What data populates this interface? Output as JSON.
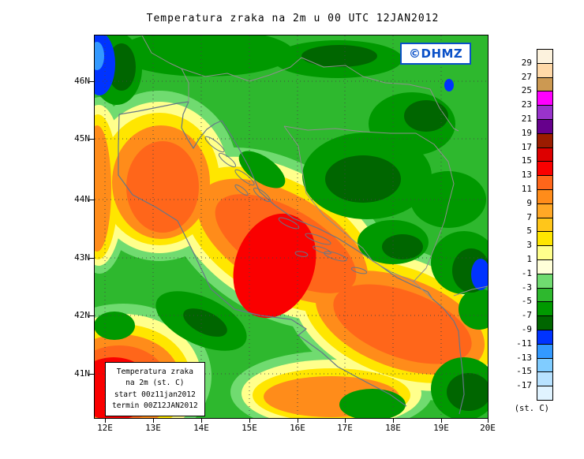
{
  "title": "Temperatura zraka na 2m u 00 UTC 12JAN2012",
  "badge": {
    "text": "©DHMZ"
  },
  "legend": {
    "lines": [
      "Temperatura zraka",
      "na 2m (st. C)",
      "start 00z11jan2012",
      "termin 00Z12JAN2012"
    ]
  },
  "axes": {
    "lat_labels": [
      "46N",
      "45N",
      "44N",
      "43N",
      "42N",
      "41N"
    ],
    "lon_labels": [
      "12E",
      "13E",
      "14E",
      "15E",
      "16E",
      "17E",
      "18E",
      "19E",
      "20E"
    ]
  },
  "colorbar": {
    "unit": "(st. C)",
    "labels": [
      "29",
      "27",
      "25",
      "23",
      "21",
      "19",
      "17",
      "15",
      "13",
      "11",
      "9",
      "7",
      "5",
      "3",
      "1",
      "-1",
      "-3",
      "-5",
      "-7",
      "-9",
      "-11",
      "-13",
      "-15",
      "-17"
    ],
    "colors": [
      "#fcf2dd",
      "#ffd9a8",
      "#cc9952",
      "#ff00ff",
      "#9933cc",
      "#66008c",
      "#9b1c00",
      "#dd0000",
      "#fa0000",
      "#ff661a",
      "#ff8c1a",
      "#ffa826",
      "#ffc61a",
      "#ffe600",
      "#ffff8c",
      "#ffffd9",
      "#70db70",
      "#2eb82e",
      "#009900",
      "#006600",
      "#0033ff",
      "#3399ff",
      "#80ccff",
      "#b8e2ff",
      "#e0f3ff"
    ]
  }
}
